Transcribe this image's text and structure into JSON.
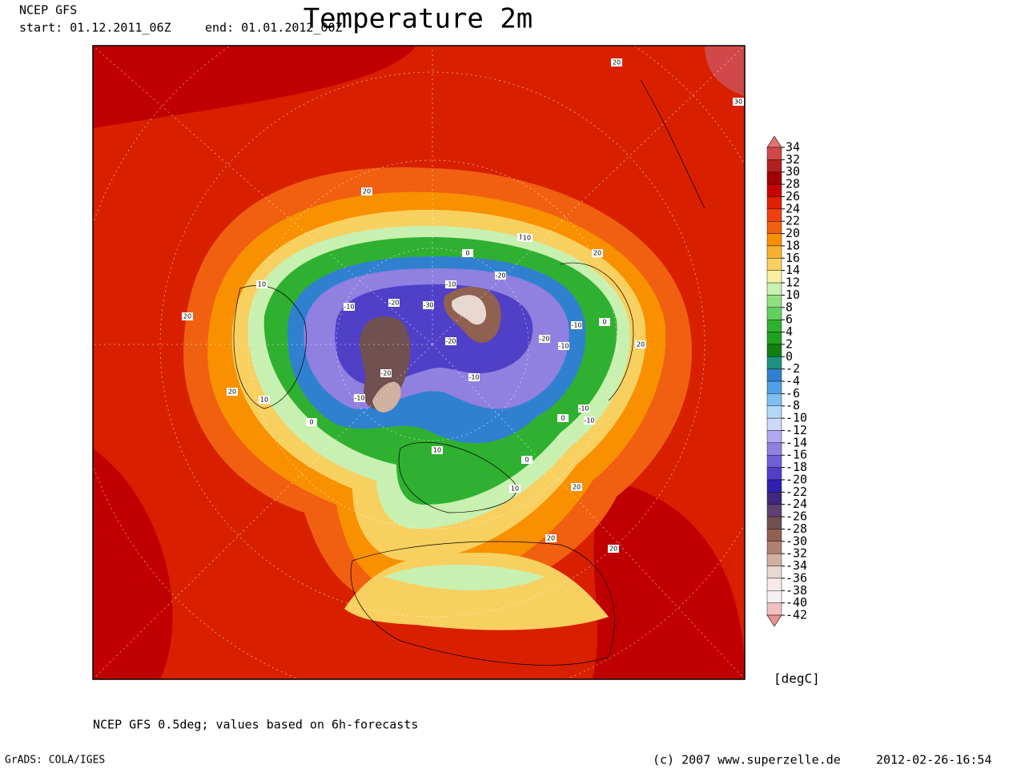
{
  "header": {
    "model": "NCEP GFS",
    "start": "start: 01.12.2011_06Z",
    "end": "end: 01.01.2012_00Z",
    "title": "Temperature 2m"
  },
  "colorbar": {
    "levels": [
      34,
      32,
      30,
      28,
      26,
      24,
      22,
      20,
      18,
      16,
      14,
      12,
      10,
      8,
      6,
      4,
      2,
      0,
      -2,
      -4,
      -6,
      -8,
      -10,
      -12,
      -14,
      -16,
      -18,
      -20,
      -22,
      -24,
      -26,
      -28,
      -30,
      -32,
      -34,
      -36,
      -38,
      -40,
      -42
    ],
    "colors": [
      "#e87070",
      "#d04848",
      "#b02020",
      "#a00000",
      "#c80000",
      "#e02000",
      "#f04010",
      "#f06010",
      "#f89000",
      "#f8b030",
      "#f8d060",
      "#f8f0a0",
      "#c8f0b0",
      "#90e080",
      "#60d060",
      "#30b030",
      "#20a020",
      "#108010",
      "#209080",
      "#3080d0",
      "#50a0e8",
      "#80c0f0",
      "#b0d8f8",
      "#d0d8f8",
      "#b0a8f0",
      "#9080e0",
      "#7060d8",
      "#5040c8",
      "#3020b0",
      "#402880",
      "#604070",
      "#705050",
      "#906050",
      "#b08070",
      "#d0b0a0",
      "#e8d8d0",
      "#f8e8e8",
      "#f8f0f0",
      "#f0c0c0",
      "#e89090"
    ],
    "unit": "[degC]"
  },
  "contour_labels": [
    "20",
    "30",
    "20",
    "20",
    "20",
    "10",
    "20",
    "10",
    "10",
    "0",
    "-10",
    "-10",
    "-20",
    "-30",
    "-10",
    "-20",
    "-20",
    "-20",
    "-20",
    "-10",
    "-10",
    "-10",
    "-10",
    "0",
    "10",
    "20",
    "0",
    "20",
    "20",
    "20",
    "10",
    "0",
    "-10",
    "0",
    "10"
  ],
  "footer": {
    "note": "NCEP GFS 0.5deg; values based on 6h-forecasts",
    "software": "GrADS: COLA/IGES",
    "copyright": "(c) 2007 www.superzelle.de",
    "timestamp": "2012-02-26-16:54"
  }
}
